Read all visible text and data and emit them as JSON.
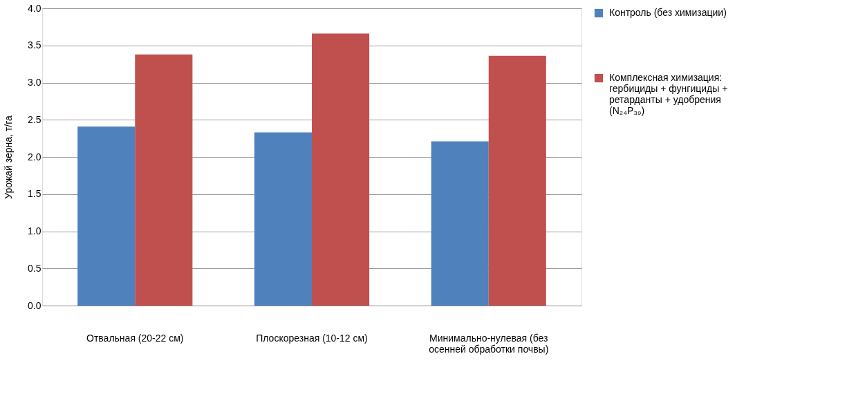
{
  "chart_data": {
    "type": "bar",
    "ylabel": "Урожай зерна, т/га",
    "categories": [
      "Отвальная (20-22 см)",
      "Плоскорезная (10-12 см)",
      "Минимально-нулевая (без осенней обработки почвы)"
    ],
    "series": [
      {
        "name": "Контроль (без химизации)",
        "color": "#4f81bd",
        "values": [
          2.41,
          2.33,
          2.21
        ]
      },
      {
        "name": "Комплексная химизация: гербициды + фунгициды + ретарданты + удобрения (N₂₄P₃₉)",
        "color": "#c0504d",
        "values": [
          3.38,
          3.66,
          3.36
        ]
      }
    ],
    "ylim": [
      0,
      4
    ],
    "yticks": [
      {
        "value": 0,
        "label": "0.0"
      },
      0.5,
      {
        "value": 1,
        "label": "1.0"
      },
      1.5,
      {
        "value": 2,
        "label": "2.0"
      },
      2.5,
      {
        "value": 3,
        "label": "3.0"
      },
      3.5,
      {
        "value": 4,
        "label": "4.0"
      }
    ],
    "grid": "y",
    "legend": "right"
  }
}
